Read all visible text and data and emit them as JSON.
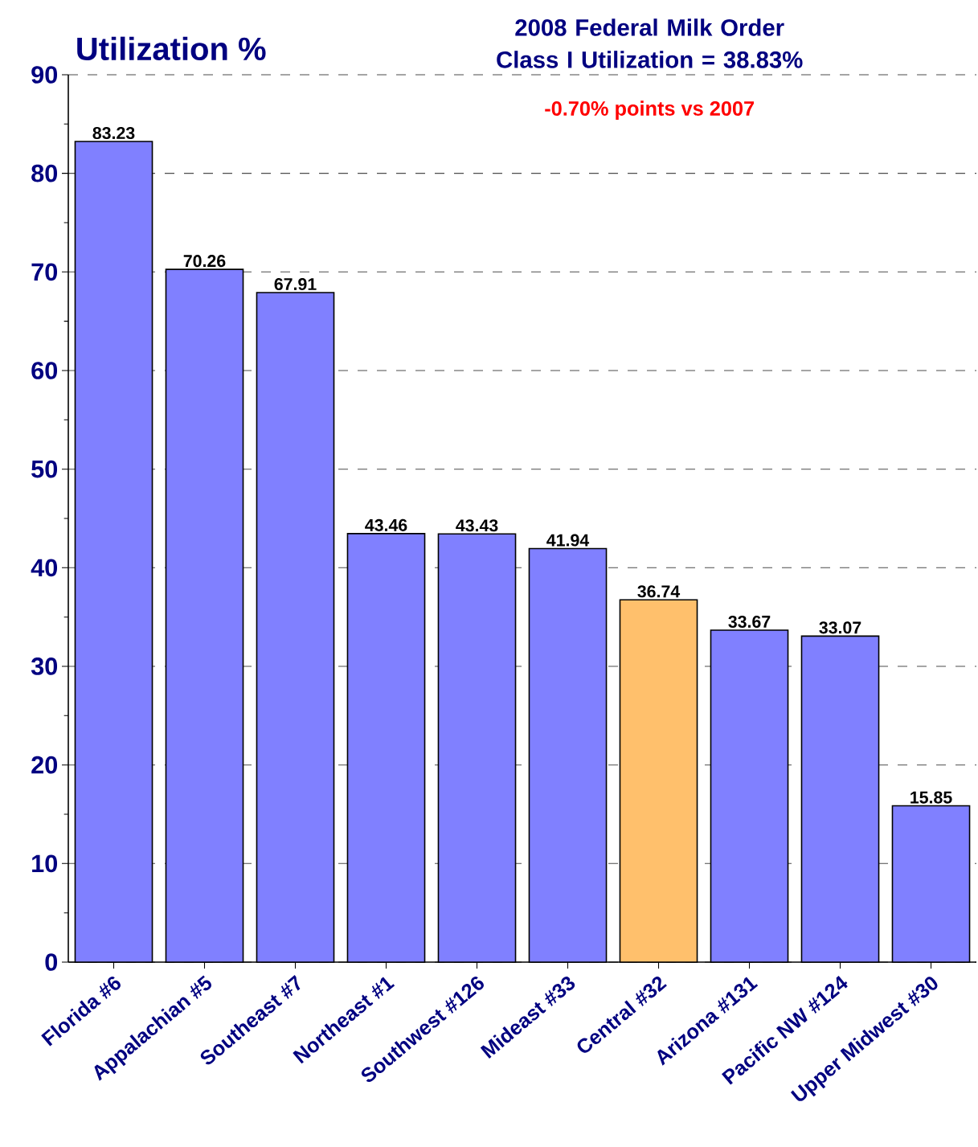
{
  "chart_data": {
    "type": "bar",
    "title": "2008 Federal Milk Order Class I Utilization = 38.83%",
    "subtitle": "-0.70% points vs 2007",
    "ylabel": "Utilization %",
    "categories": [
      "Florida #6",
      "Appalachian #5",
      "Southeast #7",
      "Northeast #1",
      "Southwest #126",
      "Mideast #33",
      "Central #32",
      "Arizona #131",
      "Pacific NW #124",
      "Upper Midwest #30"
    ],
    "values": [
      83.23,
      70.26,
      67.91,
      43.46,
      43.43,
      41.94,
      36.74,
      33.67,
      33.07,
      15.85
    ],
    "colors": [
      "#8080ff",
      "#8080ff",
      "#8080ff",
      "#8080ff",
      "#8080ff",
      "#8080ff",
      "#ffc06c",
      "#8080ff",
      "#8080ff",
      "#8080ff"
    ],
    "ylim": [
      0,
      90
    ],
    "yticks": [
      0,
      10,
      20,
      30,
      40,
      50,
      60,
      70,
      80,
      90
    ],
    "grid": "y",
    "data_labels": true
  }
}
